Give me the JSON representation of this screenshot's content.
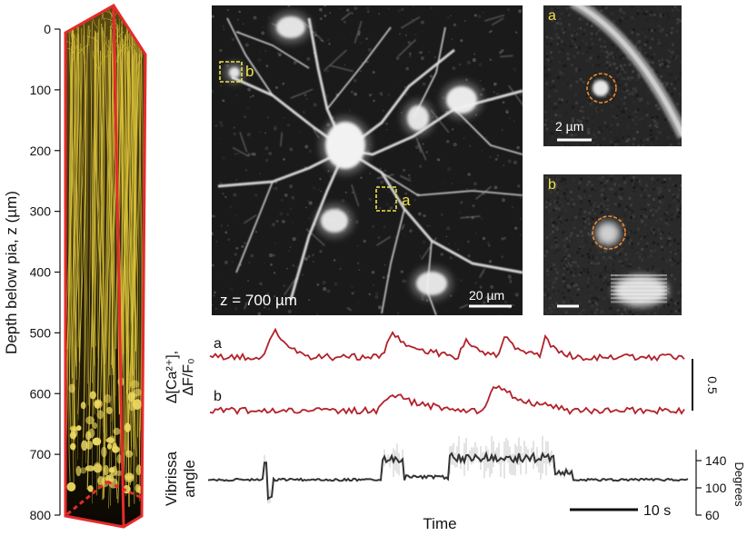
{
  "depth_axis": {
    "label": "Depth below pia, z (µm)",
    "ticks": [
      "0",
      "100",
      "200",
      "300",
      "400",
      "500",
      "600",
      "700",
      "800"
    ],
    "tick_values": [
      0,
      100,
      200,
      300,
      400,
      500,
      600,
      700,
      800
    ],
    "range": [
      0,
      800
    ]
  },
  "main_image": {
    "depth_label": "z = 700 µm",
    "scale_label": "20 µm",
    "roi_a": "a",
    "roi_b": "b"
  },
  "inset_a": {
    "label": "a",
    "scale_label": "2 µm"
  },
  "inset_b": {
    "label": "b"
  },
  "traces": {
    "a_label": "a",
    "b_label": "b",
    "ylabel_line1": "Δ[Ca²⁺],",
    "ylabel_line2": "ΔF/F₀",
    "scale_value": "0.5",
    "color": "#b3202a"
  },
  "vibrissa": {
    "label_line1": "Vibrissa",
    "label_line2": "angle",
    "axis_label": "Degrees",
    "ticks": [
      "60",
      "100",
      "140"
    ],
    "tick_values": [
      60,
      100,
      140
    ],
    "time_scale": "10 s",
    "xlabel": "Time",
    "color": "#333333"
  },
  "colors": {
    "render_outline": "#e62b2b",
    "neuron_render": "#d9c23a",
    "roi_box": "#f2e24a",
    "roi_circle": "#f28a2e"
  }
}
